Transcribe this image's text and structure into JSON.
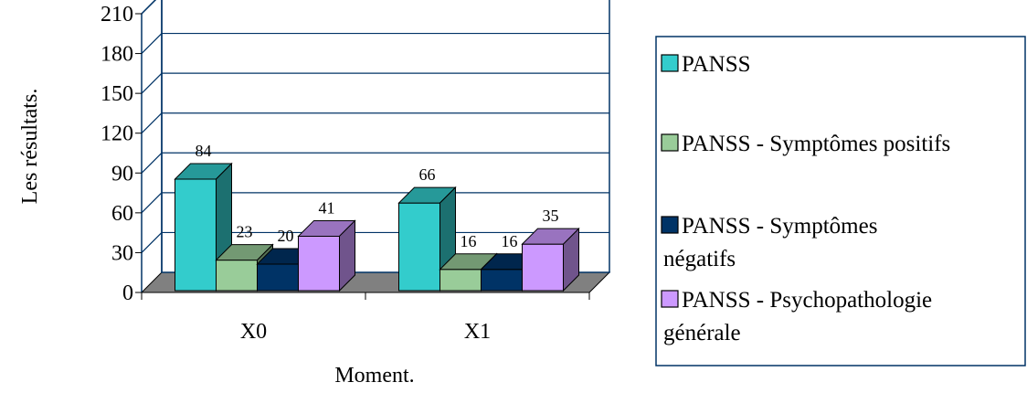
{
  "chart_data": {
    "type": "bar",
    "three_d": true,
    "xlabel": "Moment.",
    "ylabel": "Les résultats.",
    "ylim": [
      0,
      210
    ],
    "yticks": [
      0,
      30,
      60,
      90,
      120,
      150,
      180,
      210
    ],
    "grid": true,
    "legend_position": "right",
    "categories": [
      "X0",
      "X1"
    ],
    "series": [
      {
        "name": "PANSS",
        "values": [
          84,
          66
        ],
        "color": "#33CCCC"
      },
      {
        "name": "PANSS - Symptômes positifs",
        "values": [
          23,
          16
        ],
        "color": "#99CC99"
      },
      {
        "name": "PANSS - Symptômes négatifs",
        "values": [
          20,
          16
        ],
        "color": "#003366"
      },
      {
        "name": "PANSS - Psychopathologie générale",
        "values": [
          41,
          35
        ],
        "color": "#CC99FF"
      }
    ],
    "floor_color": "#808080"
  }
}
